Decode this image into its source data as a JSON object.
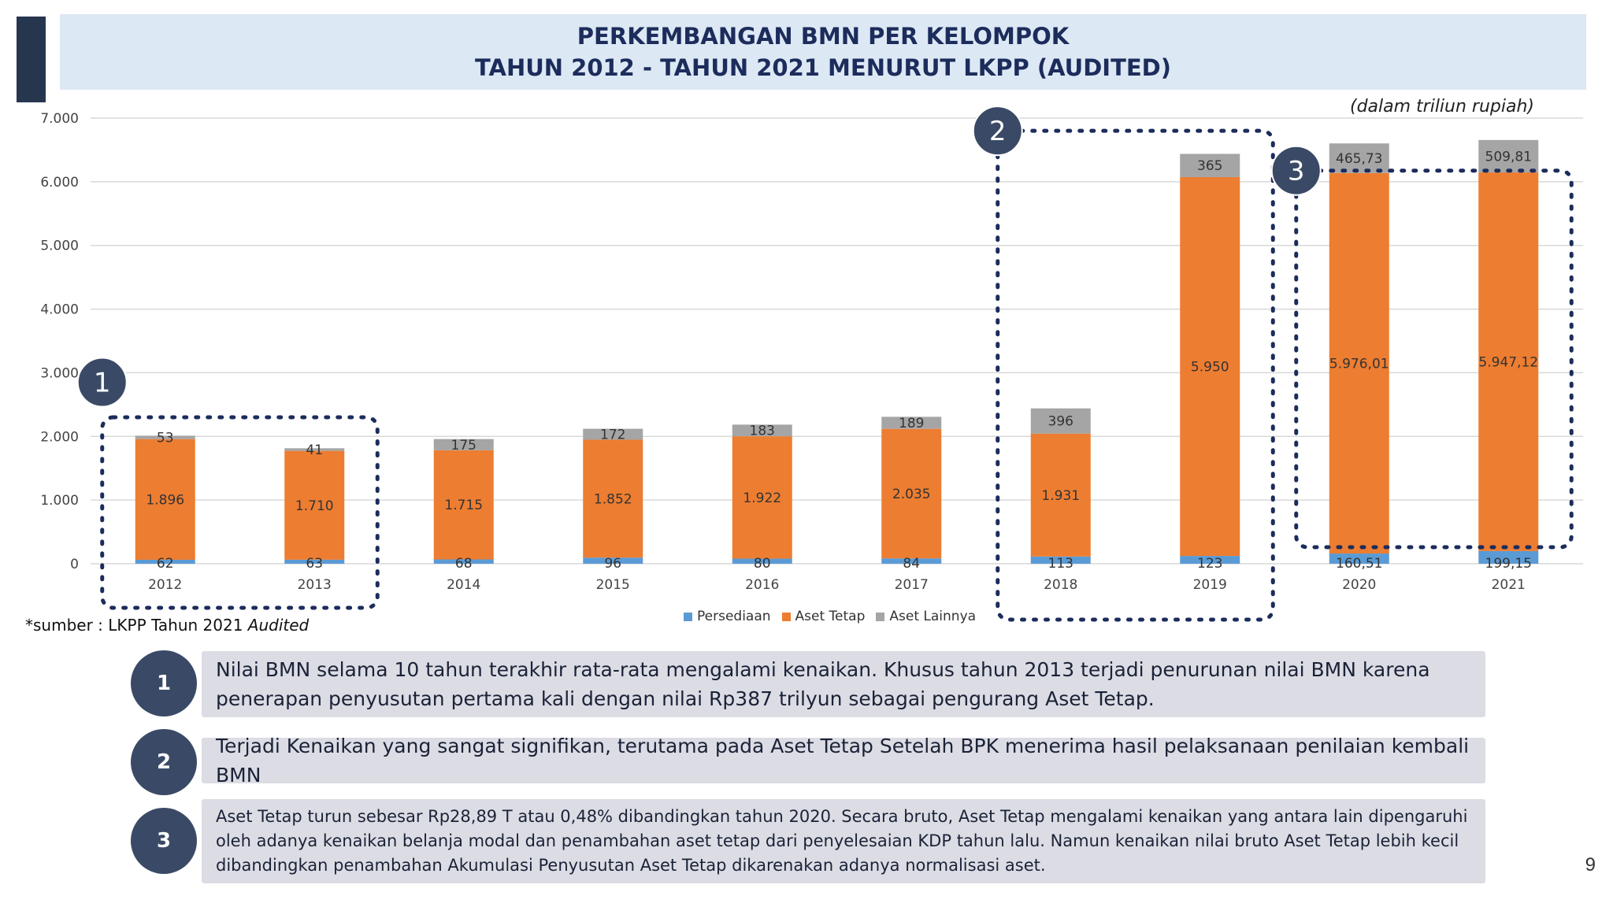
{
  "title": {
    "line1": "PERKEMBANGAN BMN PER KELOMPOK",
    "line2": "TAHUN 2012 - TAHUN 2021 MENURUT LKPP (AUDITED)"
  },
  "unit_note": "(dalam triliun rupiah)",
  "source_note": {
    "prefix": "*sumber : LKPP Tahun 2021 ",
    "emphasis": "Audited"
  },
  "colors": {
    "persediaan": "#5b9bd5",
    "aset_tetap": "#ed7d31",
    "aset_lainnya": "#a5a5a5",
    "dotted_box": "#1c2c5b",
    "callout": "#3a4a66"
  },
  "chart_data": {
    "type": "bar",
    "stacked": true,
    "categories": [
      "2012",
      "2013",
      "2014",
      "2015",
      "2016",
      "2017",
      "2018",
      "2019",
      "2020",
      "2021"
    ],
    "series": [
      {
        "name": "Persediaan",
        "values": [
          62,
          63,
          68,
          96,
          80,
          84,
          113,
          123,
          160.51,
          199.15
        ],
        "labels": [
          "62",
          "63",
          "68",
          "96",
          "80",
          "84",
          "113",
          "123",
          "160,51",
          "199,15"
        ]
      },
      {
        "name": "Aset Tetap",
        "values": [
          1896,
          1710,
          1715,
          1852,
          1922,
          2035,
          1931,
          5950,
          5976.01,
          5947.12
        ],
        "labels": [
          "1.896",
          "1.710",
          "1.715",
          "1.852",
          "1.922",
          "2.035",
          "1.931",
          "5.950",
          "5.976,01",
          "5.947,12"
        ]
      },
      {
        "name": "Aset Lainnya",
        "values": [
          53,
          41,
          175,
          172,
          183,
          189,
          396,
          365,
          465.73,
          509.81
        ],
        "labels": [
          "53",
          "41",
          "175",
          "172",
          "183",
          "189",
          "396",
          "365",
          "465,73",
          "509,81"
        ]
      }
    ],
    "ylim": [
      0,
      7000
    ],
    "yticks": [
      0,
      1000,
      2000,
      3000,
      4000,
      5000,
      6000,
      7000
    ],
    "ytick_labels": [
      "0",
      "1.000",
      "2.000",
      "3.000",
      "4.000",
      "5.000",
      "6.000",
      "7.000"
    ],
    "grid": true,
    "legend_position": "bottom",
    "annotations": [
      {
        "label": "1",
        "years": [
          "2012",
          "2013"
        ]
      },
      {
        "label": "2",
        "years": [
          "2018",
          "2019"
        ]
      },
      {
        "label": "3",
        "years": [
          "2020",
          "2021"
        ]
      }
    ]
  },
  "notes": [
    {
      "number": "1",
      "text": "Nilai BMN selama 10 tahun terakhir rata-rata mengalami kenaikan.  Khusus tahun 2013 terjadi penurunan nilai BMN karena penerapan penyusutan pertama kali dengan nilai Rp387 trilyun sebagai pengurang Aset Tetap."
    },
    {
      "number": "2",
      "text": "Terjadi Kenaikan yang sangat signifikan, terutama pada Aset Tetap Setelah BPK menerima hasil pelaksanaan penilaian kembali BMN"
    },
    {
      "number": "3",
      "text": "Aset Tetap turun sebesar Rp28,89 T atau 0,48% dibandingkan tahun 2020. Secara bruto, Aset Tetap mengalami kenaikan yang antara lain dipengaruhi oleh adanya kenaikan belanja modal dan penambahan aset tetap dari penyelesaian KDP tahun lalu. Namun kenaikan nilai bruto Aset Tetap lebih kecil dibandingkan penambahan Akumulasi Penyusutan Aset Tetap dikarenakan adanya normalisasi aset."
    }
  ],
  "page_number": "9"
}
